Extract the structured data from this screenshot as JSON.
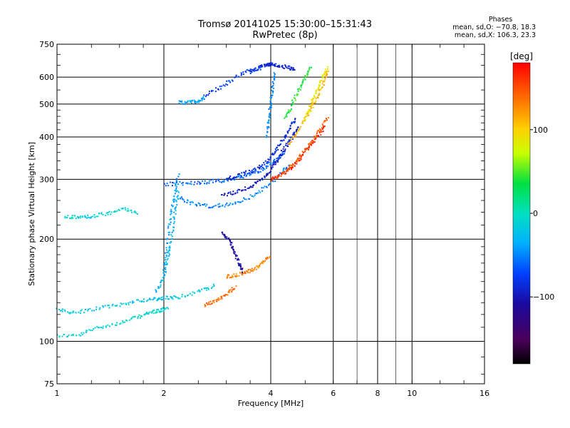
{
  "title": {
    "line1": "Tromsø 20141025 15:30:00–15:31:43",
    "line2": "RwPretec (8p)"
  },
  "phase_stats": {
    "heading": "Phases",
    "line_o": "mean, sd,O: −70.8, 18.3",
    "line_x": "mean, sd,X: 106.3, 23.3"
  },
  "colorbar": {
    "unit_label": "[deg]",
    "ticks": [
      {
        "value": 100,
        "label": "100"
      },
      {
        "value": 0,
        "label": "0"
      },
      {
        "value": -100,
        "label": "−100"
      }
    ],
    "range": [
      -180,
      180
    ]
  },
  "chart_data": {
    "type": "scatter",
    "title": "Tromsø 20141025 15:30:00–15:31:43",
    "subtitle": "RwPretec (8p)",
    "xlabel": "Frequency [MHz]",
    "ylabel": "Stationary phase Virtual Height [km]",
    "x_scale": "log",
    "y_scale": "log",
    "xlim": [
      1,
      16
    ],
    "ylim": [
      75,
      750
    ],
    "x_ticks": [
      1,
      2,
      4,
      6,
      8,
      10,
      16
    ],
    "x_ticklabels": [
      "1",
      "2",
      "4",
      "6",
      "8",
      "10",
      "16"
    ],
    "y_ticks": [
      75,
      100,
      200,
      300,
      400,
      500,
      600,
      750
    ],
    "y_ticklabels": [
      "75",
      "100",
      "200",
      "300",
      "400",
      "500",
      "600",
      "750"
    ],
    "grid": true,
    "color_variable": "phase (deg)",
    "colormap": "rainbow",
    "traces": [
      {
        "x": [
          1.0,
          1.15,
          1.3,
          1.5,
          1.7,
          1.85,
          1.95,
          2.05
        ],
        "y": [
          104,
          104,
          110,
          113,
          118,
          122,
          123,
          126
        ],
        "phase": -10
      },
      {
        "x": [
          1.0,
          1.12,
          1.3,
          1.5,
          1.7,
          1.9,
          2.0,
          2.2,
          2.5,
          2.8
        ],
        "y": [
          124,
          121,
          125,
          128,
          132,
          133,
          134,
          135,
          140,
          146
        ],
        "phase": -20
      },
      {
        "x": [
          1.05,
          1.15,
          1.25,
          1.4,
          1.55,
          1.7
        ],
        "y": [
          232,
          232,
          233,
          238,
          246,
          238
        ],
        "phase": -10
      },
      {
        "x": [
          1.9,
          2.0,
          2.05,
          2.1,
          2.15,
          2.2
        ],
        "y": [
          140,
          155,
          175,
          200,
          240,
          280
        ],
        "phase": -30
      },
      {
        "x": [
          2.0,
          2.05,
          2.1,
          2.15,
          2.2
        ],
        "y": [
          160,
          200,
          240,
          275,
          310
        ],
        "phase": -40
      },
      {
        "x": [
          2.2,
          2.4,
          2.7,
          3.0,
          3.4,
          3.8,
          4.2,
          4.5
        ],
        "y": [
          265,
          255,
          250,
          252,
          262,
          280,
          305,
          330
        ],
        "phase": -50
      },
      {
        "x": [
          2.0,
          2.3,
          2.6,
          2.9,
          3.2,
          3.5,
          3.8,
          4.1,
          4.4
        ],
        "y": [
          290,
          292,
          294,
          297,
          302,
          310,
          322,
          340,
          360
        ],
        "phase": -60
      },
      {
        "x": [
          2.9,
          3.2,
          3.5,
          3.8,
          4.0,
          4.2,
          4.4,
          4.6,
          4.8
        ],
        "y": [
          270,
          275,
          285,
          300,
          320,
          345,
          372,
          400,
          430
        ],
        "phase": -95
      },
      {
        "x": [
          3.0,
          3.3,
          3.6,
          3.9,
          4.1,
          4.3,
          4.5,
          4.7
        ],
        "y": [
          300,
          310,
          320,
          338,
          360,
          390,
          420,
          455
        ],
        "phase": -85
      },
      {
        "x": [
          2.9,
          3.05,
          3.15,
          3.25,
          3.35
        ],
        "y": [
          210,
          200,
          185,
          170,
          160
        ],
        "phase": -110
      },
      {
        "x": [
          3.0,
          3.2,
          3.4,
          3.6,
          3.8,
          4.0
        ],
        "y": [
          155,
          157,
          160,
          163,
          170,
          180
        ],
        "phase": 130
      },
      {
        "x": [
          2.6,
          2.8,
          3.0,
          3.2
        ],
        "y": [
          128,
          131,
          138,
          145
        ],
        "phase": 140
      },
      {
        "x": [
          4.0,
          4.2,
          4.5,
          4.8,
          5.1,
          5.4,
          5.7
        ],
        "y": [
          300,
          305,
          320,
          340,
          370,
          400,
          430
        ],
        "phase": 165
      },
      {
        "x": [
          4.3,
          4.6,
          4.9,
          5.2,
          5.5,
          5.8
        ],
        "y": [
          310,
          330,
          355,
          385,
          420,
          460
        ],
        "phase": 145
      },
      {
        "x": [
          4.5,
          4.8,
          5.1,
          5.4,
          5.6,
          5.8
        ],
        "y": [
          380,
          420,
          470,
          520,
          570,
          620
        ],
        "phase": 110
      },
      {
        "x": [
          5.0,
          5.2,
          5.4,
          5.6,
          5.8
        ],
        "y": [
          450,
          500,
          550,
          600,
          640
        ],
        "phase": 90
      },
      {
        "x": [
          4.4,
          4.6,
          4.8,
          5.0,
          5.2
        ],
        "y": [
          450,
          500,
          550,
          600,
          640
        ],
        "phase": 40
      },
      {
        "x": [
          3.5,
          3.7,
          3.9,
          4.0,
          4.2,
          4.5,
          4.7
        ],
        "y": [
          620,
          640,
          650,
          655,
          650,
          640,
          630
        ],
        "phase": -90
      },
      {
        "x": [
          2.6,
          2.9,
          3.2,
          3.5,
          3.8
        ],
        "y": [
          530,
          560,
          600,
          630,
          640
        ],
        "phase": -75
      },
      {
        "x": [
          3.9,
          3.95,
          4.0,
          4.05,
          4.1
        ],
        "y": [
          400,
          450,
          500,
          560,
          620
        ],
        "phase": -50
      },
      {
        "x": [
          2.2,
          2.35,
          2.5,
          2.6
        ],
        "y": [
          505,
          505,
          510,
          520
        ],
        "phase": -40
      }
    ]
  }
}
